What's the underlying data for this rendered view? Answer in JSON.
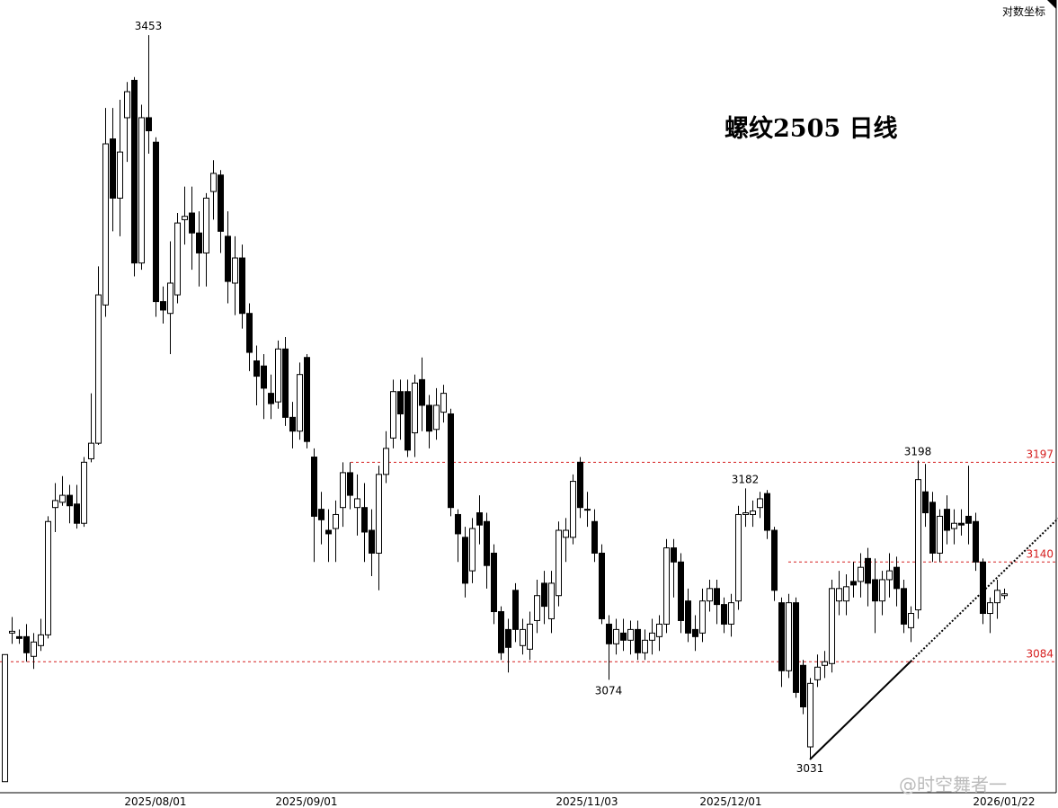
{
  "chart_data": {
    "type": "candlestick",
    "title": "螺纹2505 日线",
    "scale_label": "对数坐标",
    "watermark": "@时空舞者一",
    "log_scale": true,
    "ylim": [
      3012,
      3475
    ],
    "grid": false,
    "up_color": "#ffffff",
    "down_color": "#000000",
    "edge_color": "#000000",
    "level_color": "#d62020",
    "categories": [
      null,
      null,
      null,
      null,
      null,
      null,
      null,
      null,
      null,
      null,
      null,
      null,
      null,
      null,
      null,
      null,
      null,
      null,
      null,
      null,
      null,
      "2025/08/01",
      null,
      null,
      null,
      null,
      null,
      null,
      null,
      null,
      null,
      null,
      null,
      null,
      null,
      null,
      null,
      null,
      null,
      null,
      null,
      null,
      "2025/09/01",
      null,
      null,
      null,
      null,
      null,
      null,
      null,
      null,
      null,
      null,
      null,
      null,
      null,
      null,
      null,
      null,
      null,
      null,
      null,
      null,
      null,
      null,
      null,
      null,
      null,
      null,
      null,
      null,
      null,
      null,
      null,
      null,
      null,
      null,
      null,
      null,
      null,
      null,
      "2025/11/03",
      null,
      null,
      null,
      null,
      null,
      null,
      null,
      null,
      null,
      null,
      null,
      null,
      null,
      null,
      null,
      null,
      null,
      null,
      null,
      "2025/12/01",
      null,
      null,
      null,
      null,
      null,
      null,
      null,
      null,
      null,
      null,
      null,
      null,
      null,
      null,
      null,
      null,
      null,
      null,
      null,
      null,
      null,
      null,
      null,
      null,
      null,
      null,
      null,
      null,
      null,
      null,
      null,
      null,
      null,
      null,
      null,
      null,
      null,
      "2026/01/22"
    ],
    "open": [
      3018,
      3100,
      3098,
      3098,
      3087,
      3093,
      3099,
      3171,
      3174,
      3178,
      3173,
      3162,
      3199,
      3208,
      3289,
      3389,
      3353,
      3402,
      3425,
      3314,
      3402,
      3387,
      3291,
      3284,
      3295,
      3340,
      3344,
      3332,
      3320,
      3357,
      3367,
      3330,
      3302,
      3317,
      3284,
      3256,
      3253,
      3237,
      3232,
      3263,
      3223,
      3215,
      3258,
      3200,
      3170,
      3158,
      3159,
      3171,
      3191,
      3171,
      3171,
      3158,
      3145,
      3190,
      3211,
      3238,
      3238,
      3214,
      3245,
      3230,
      3216,
      3226,
      3225,
      3167,
      3154,
      3135,
      3168,
      3163,
      3145,
      3112,
      3102,
      3124,
      3093,
      3091,
      3107,
      3128,
      3108,
      3121,
      3154,
      3154,
      3197,
      3170,
      3163,
      3145,
      3105,
      3094,
      3100,
      3096,
      3102,
      3089,
      3096,
      3098,
      3105,
      3148,
      3140,
      3118,
      3102,
      3100,
      3118,
      3125,
      3116,
      3105,
      3118,
      3167,
      3167,
      3171,
      3179,
      3158,
      3117,
      3079,
      3117,
      3082,
      3037,
      3074,
      3082,
      3083,
      3118,
      3118,
      3129,
      3129,
      3142,
      3130,
      3118,
      3130,
      3137,
      3125,
      3103,
      3113,
      3180,
      3174,
      3145,
      3170,
      3159,
      3162,
      3166,
      3163,
      3140,
      3111,
      3117,
      3121
    ],
    "high": [
      3088,
      3109,
      3102,
      3105,
      3100,
      3108,
      3166,
      3185,
      3189,
      3184,
      3184,
      3200,
      3237,
      3312,
      3408,
      3408,
      3413,
      3424,
      3427,
      3410,
      3453,
      3390,
      3300,
      3327,
      3344,
      3360,
      3360,
      3345,
      3356,
      3376,
      3370,
      3345,
      3330,
      3325,
      3290,
      3265,
      3260,
      3248,
      3268,
      3270,
      3232,
      3255,
      3260,
      3205,
      3180,
      3170,
      3175,
      3197,
      3197,
      3190,
      3185,
      3170,
      3195,
      3215,
      3245,
      3245,
      3245,
      3248,
      3258,
      3236,
      3240,
      3242,
      3228,
      3170,
      3160,
      3165,
      3178,
      3168,
      3150,
      3115,
      3108,
      3128,
      3108,
      3112,
      3130,
      3135,
      3135,
      3163,
      3165,
      3190,
      3200,
      3180,
      3170,
      3150,
      3110,
      3108,
      3108,
      3107,
      3107,
      3102,
      3108,
      3110,
      3153,
      3153,
      3145,
      3125,
      3110,
      3125,
      3130,
      3130,
      3120,
      3122,
      3172,
      3182,
      3175,
      3180,
      3181,
      3160,
      3120,
      3122,
      3120,
      3085,
      3075,
      3088,
      3090,
      3130,
      3135,
      3133,
      3140,
      3145,
      3148,
      3142,
      3135,
      3145,
      3143,
      3130,
      3115,
      3198,
      3196,
      3180,
      3170,
      3178,
      3170,
      3170,
      3195,
      3168,
      3142,
      3120,
      3130,
      3125
    ],
    "low": [
      3018,
      3094,
      3094,
      3084,
      3080,
      3090,
      3097,
      3157,
      3172,
      3162,
      3159,
      3160,
      3197,
      3207,
      3282,
      3333,
      3330,
      3375,
      3306,
      3310,
      3380,
      3282,
      3278,
      3260,
      3290,
      3325,
      3310,
      3300,
      3300,
      3340,
      3320,
      3290,
      3283,
      3275,
      3250,
      3230,
      3222,
      3222,
      3228,
      3218,
      3205,
      3210,
      3205,
      3140,
      3150,
      3140,
      3140,
      3160,
      3170,
      3155,
      3140,
      3132,
      3124,
      3185,
      3205,
      3210,
      3200,
      3200,
      3215,
      3205,
      3210,
      3220,
      3166,
      3140,
      3120,
      3128,
      3150,
      3125,
      3105,
      3085,
      3078,
      3095,
      3088,
      3085,
      3100,
      3105,
      3100,
      3115,
      3140,
      3150,
      3165,
      3160,
      3140,
      3105,
      3074,
      3088,
      3090,
      3088,
      3085,
      3085,
      3088,
      3090,
      3100,
      3120,
      3100,
      3095,
      3090,
      3095,
      3112,
      3105,
      3100,
      3098,
      3113,
      3160,
      3160,
      3165,
      3153,
      3118,
      3070,
      3075,
      3064,
      3055,
      3031,
      3070,
      3075,
      3078,
      3110,
      3110,
      3120,
      3120,
      3115,
      3100,
      3110,
      3120,
      3115,
      3100,
      3095,
      3108,
      3160,
      3140,
      3140,
      3150,
      3150,
      3155,
      3150,
      3135,
      3105,
      3100,
      3108,
      3119
    ],
    "close": [
      3088,
      3101,
      3097,
      3089,
      3095,
      3099,
      3163,
      3175,
      3178,
      3172,
      3162,
      3197,
      3208,
      3295,
      3386,
      3353,
      3381,
      3418,
      3314,
      3402,
      3394,
      3291,
      3286,
      3302,
      3338,
      3342,
      3332,
      3320,
      3353,
      3368,
      3333,
      3303,
      3317,
      3284,
      3261,
      3247,
      3240,
      3231,
      3263,
      3223,
      3215,
      3248,
      3209,
      3166,
      3164,
      3156,
      3167,
      3191,
      3178,
      3176,
      3157,
      3145,
      3190,
      3205,
      3238,
      3225,
      3204,
      3243,
      3230,
      3215,
      3230,
      3237,
      3171,
      3156,
      3128,
      3159,
      3161,
      3138,
      3112,
      3089,
      3092,
      3102,
      3102,
      3105,
      3121,
      3115,
      3128,
      3158,
      3158,
      3186,
      3171,
      3170,
      3145,
      3108,
      3094,
      3102,
      3096,
      3102,
      3089,
      3096,
      3100,
      3105,
      3148,
      3140,
      3107,
      3100,
      3098,
      3118,
      3125,
      3116,
      3105,
      3117,
      3167,
      3168,
      3169,
      3176,
      3158,
      3124,
      3079,
      3117,
      3067,
      3059,
      3072,
      3081,
      3084,
      3125,
      3125,
      3126,
      3127,
      3137,
      3128,
      3118,
      3130,
      3135,
      3125,
      3105,
      3111,
      3187,
      3168,
      3145,
      3166,
      3158,
      3162,
      3161,
      3162,
      3140,
      3111,
      3117,
      3124,
      3122
    ],
    "peak_labels": [
      3453,
      3182,
      3198
    ],
    "trough_labels": [
      3074,
      3031
    ],
    "levels": [
      3197,
      3140,
      3084
    ]
  }
}
